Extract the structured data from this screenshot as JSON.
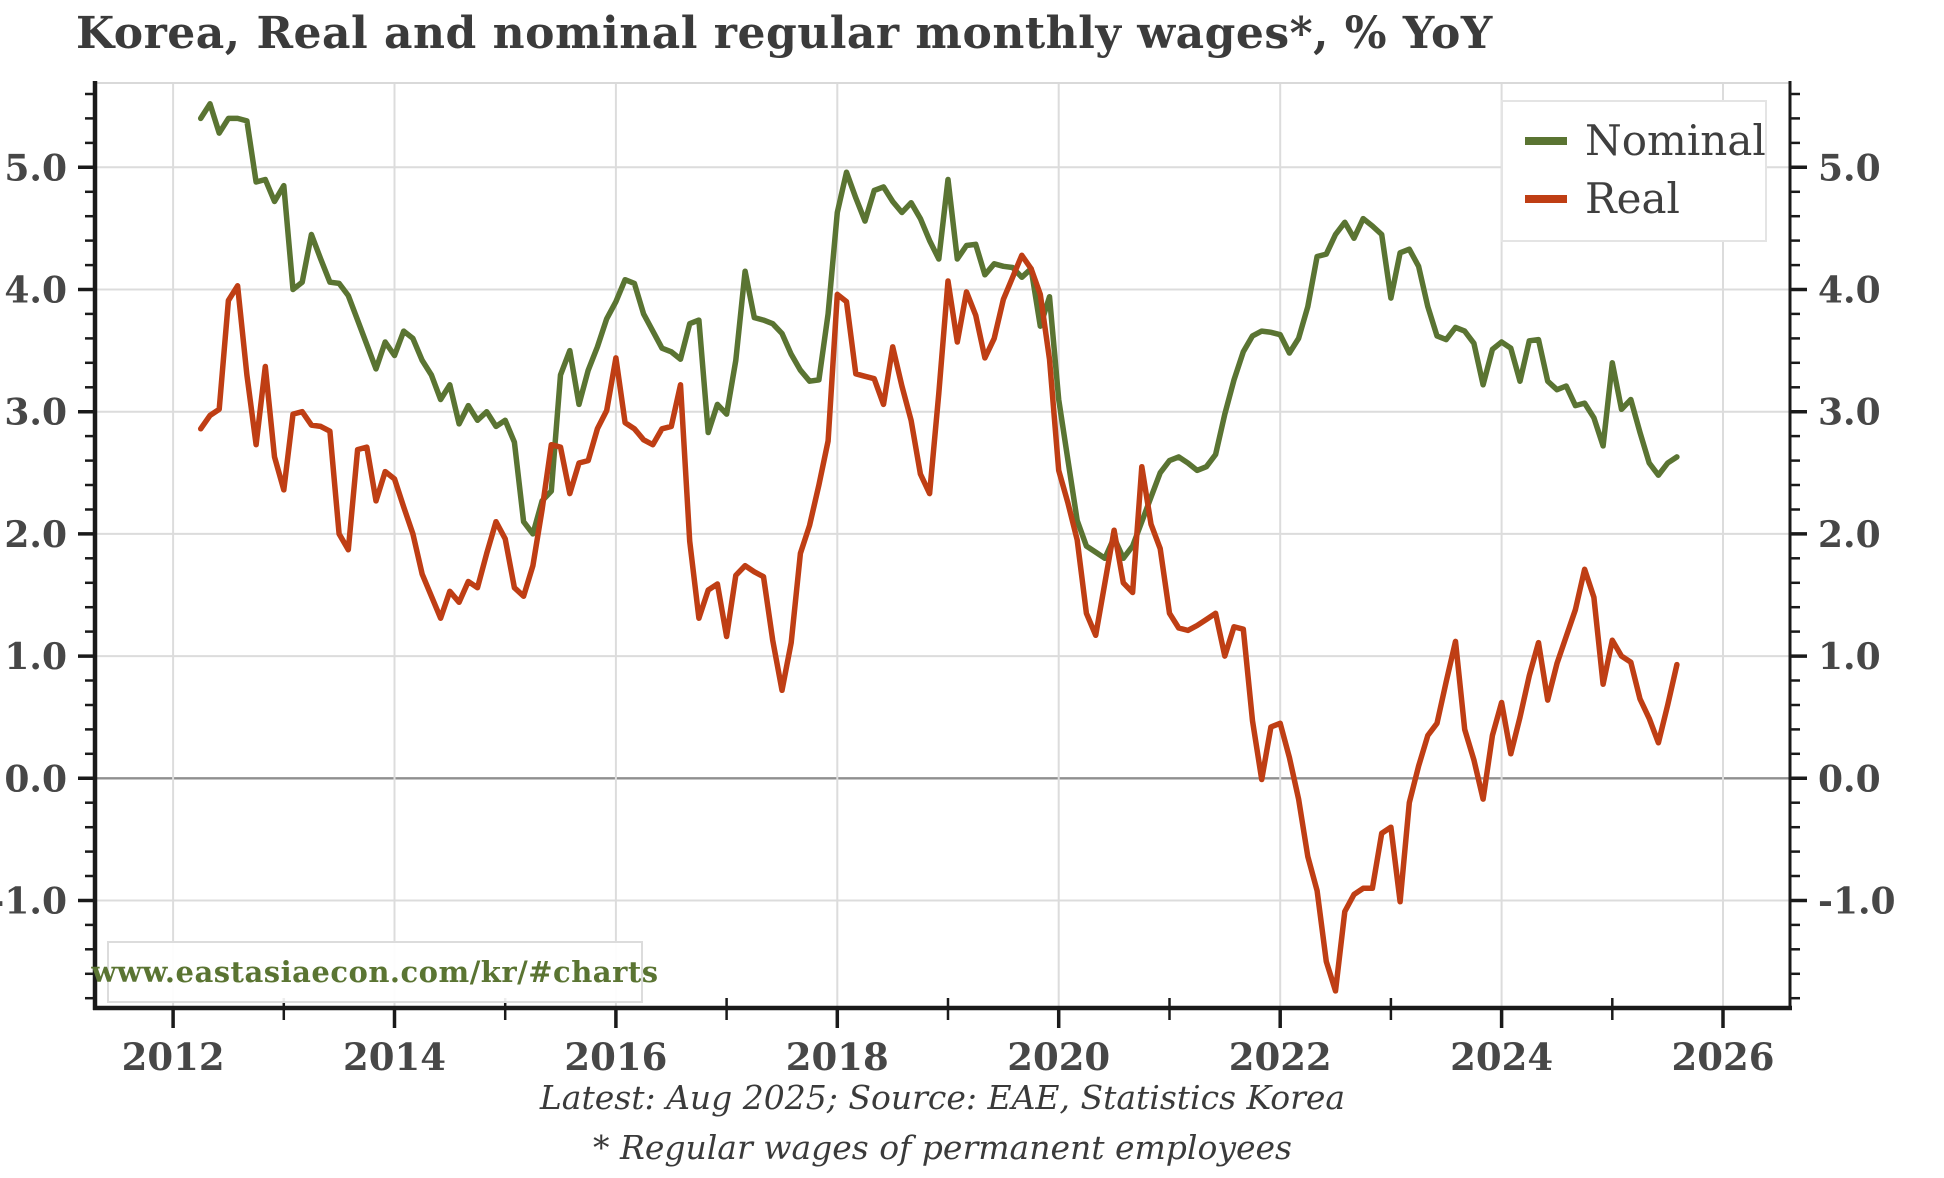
{
  "page": {
    "title": "Korea, Real and nominal regular monthly wages*, % YoY"
  },
  "watermark": {
    "text": "www.eastasiaecon.com/kr/#charts"
  },
  "captions": {
    "line1": "Latest: Aug 2025; Source: EAE, Statistics Korea",
    "line2": "* Regular wages of permanent employees"
  },
  "legend": {
    "items": [
      {
        "label": "Nominal",
        "color": "#5a7432"
      },
      {
        "label": "Real",
        "color": "#bf3e14"
      }
    ]
  },
  "colors": {
    "nominal": "#5a7432",
    "real": "#bf3e14",
    "title_text": "#3b3b3b",
    "axis_text": "#474747",
    "grid": "#dcdcdc",
    "zero_line": "#8f8f8f",
    "spine": "#1a1a1a",
    "spine_light": "#d9d9d9",
    "background": "#ffffff"
  },
  "chart_data": {
    "type": "line",
    "title": "Korea, Real and nominal regular monthly wages*, % YoY",
    "xlabel": "",
    "ylabel": "% YoY",
    "freq": "monthly",
    "x_start": "2012-04",
    "x_end": "2025-08",
    "xlim": [
      2011.295,
      2026.605
    ],
    "ylim": [
      -1.88,
      5.69
    ],
    "grid": true,
    "legend_position": "top-right",
    "axes": {
      "y_ticks": [
        5.0,
        4.0,
        3.0,
        2.0,
        1.0,
        0.0,
        -1.0
      ],
      "y_tick_labels": [
        "5.0",
        "4.0",
        "3.0",
        "2.0",
        "1.0",
        "0.0",
        "-1.0"
      ],
      "y_minor_step": 0.2,
      "x_major_years": [
        2012,
        2014,
        2016,
        2018,
        2020,
        2022,
        2024,
        2026
      ],
      "x_major_labels": [
        "2012",
        "2014",
        "2016",
        "2018",
        "2020",
        "2022",
        "2024",
        "2026"
      ],
      "x_minor_years": [
        2013,
        2015,
        2017,
        2019,
        2021,
        2023,
        2025
      ]
    },
    "series": [
      {
        "name": "Nominal",
        "color": "#5a7432",
        "values": [
          5.4,
          5.52,
          5.28,
          5.4,
          5.4,
          5.38,
          4.88,
          4.9,
          4.72,
          4.85,
          4.0,
          4.06,
          4.45,
          4.25,
          4.06,
          4.05,
          3.95,
          3.75,
          3.55,
          3.35,
          3.57,
          3.46,
          3.66,
          3.6,
          3.42,
          3.3,
          3.1,
          3.22,
          2.9,
          3.05,
          2.93,
          3.0,
          2.88,
          2.93,
          2.75,
          2.1,
          2.0,
          2.27,
          2.35,
          3.3,
          3.5,
          3.06,
          3.34,
          3.53,
          3.76,
          3.9,
          4.08,
          4.05,
          3.8,
          3.66,
          3.52,
          3.49,
          3.43,
          3.72,
          3.75,
          2.83,
          3.06,
          2.98,
          3.42,
          4.15,
          3.77,
          3.75,
          3.72,
          3.64,
          3.47,
          3.34,
          3.25,
          3.26,
          3.8,
          4.63,
          4.96,
          4.75,
          4.56,
          4.81,
          4.84,
          4.72,
          4.63,
          4.71,
          4.58,
          4.4,
          4.25,
          4.9,
          4.25,
          4.36,
          4.37,
          4.12,
          4.21,
          4.19,
          4.18,
          4.1,
          4.17,
          3.7,
          3.94,
          3.1,
          2.6,
          2.11,
          1.9,
          1.85,
          1.8,
          1.97,
          1.8,
          1.9,
          2.1,
          2.3,
          2.5,
          2.6,
          2.63,
          2.58,
          2.52,
          2.55,
          2.65,
          2.98,
          3.26,
          3.49,
          3.62,
          3.66,
          3.65,
          3.63,
          3.48,
          3.6,
          3.86,
          4.27,
          4.29,
          4.45,
          4.55,
          4.42,
          4.58,
          4.52,
          4.45,
          3.93,
          4.3,
          4.33,
          4.19,
          3.86,
          3.62,
          3.59,
          3.69,
          3.66,
          3.56,
          3.22,
          3.51,
          3.57,
          3.52,
          3.25,
          3.58,
          3.59,
          3.25,
          3.18,
          3.21,
          3.05,
          3.07,
          2.95,
          2.72,
          3.4,
          3.02,
          3.1,
          2.83,
          2.58,
          2.48,
          2.58,
          2.63
        ]
      },
      {
        "name": "Real",
        "color": "#bf3e14",
        "values": [
          2.86,
          2.97,
          3.02,
          3.91,
          4.03,
          3.3,
          2.73,
          3.37,
          2.63,
          2.36,
          2.98,
          3.0,
          2.89,
          2.88,
          2.84,
          2.0,
          1.87,
          2.69,
          2.71,
          2.27,
          2.51,
          2.45,
          2.22,
          2.0,
          1.67,
          1.49,
          1.31,
          1.53,
          1.44,
          1.61,
          1.56,
          1.84,
          2.1,
          1.96,
          1.56,
          1.49,
          1.74,
          2.2,
          2.73,
          2.71,
          2.33,
          2.58,
          2.6,
          2.86,
          3.01,
          3.44,
          2.91,
          2.86,
          2.77,
          2.73,
          2.86,
          2.88,
          3.22,
          1.94,
          1.31,
          1.54,
          1.59,
          1.16,
          1.66,
          1.74,
          1.69,
          1.65,
          1.13,
          0.72,
          1.11,
          1.84,
          2.07,
          2.4,
          2.76,
          3.96,
          3.9,
          3.31,
          3.29,
          3.27,
          3.06,
          3.53,
          3.21,
          2.93,
          2.49,
          2.33,
          3.15,
          4.07,
          3.57,
          3.98,
          3.79,
          3.44,
          3.6,
          3.92,
          4.1,
          4.28,
          4.17,
          3.96,
          3.43,
          2.52,
          2.25,
          1.95,
          1.35,
          1.17,
          1.6,
          2.03,
          1.6,
          1.52,
          2.55,
          2.08,
          1.88,
          1.35,
          1.23,
          1.21,
          1.25,
          1.3,
          1.35,
          1.0,
          1.24,
          1.22,
          0.47,
          -0.01,
          0.42,
          0.45,
          0.17,
          -0.17,
          -0.64,
          -0.92,
          -1.5,
          -1.74,
          -1.09,
          -0.95,
          -0.9,
          -0.9,
          -0.45,
          -0.4,
          -1.01,
          -0.2,
          0.1,
          0.35,
          0.45,
          0.79,
          1.12,
          0.4,
          0.15,
          -0.17,
          0.35,
          0.62,
          0.2,
          0.5,
          0.84,
          1.11,
          0.64,
          0.94,
          1.16,
          1.38,
          1.71,
          1.48,
          0.77,
          1.13,
          1.0,
          0.95,
          0.65,
          0.49,
          0.29,
          0.6,
          0.93
        ]
      }
    ]
  }
}
